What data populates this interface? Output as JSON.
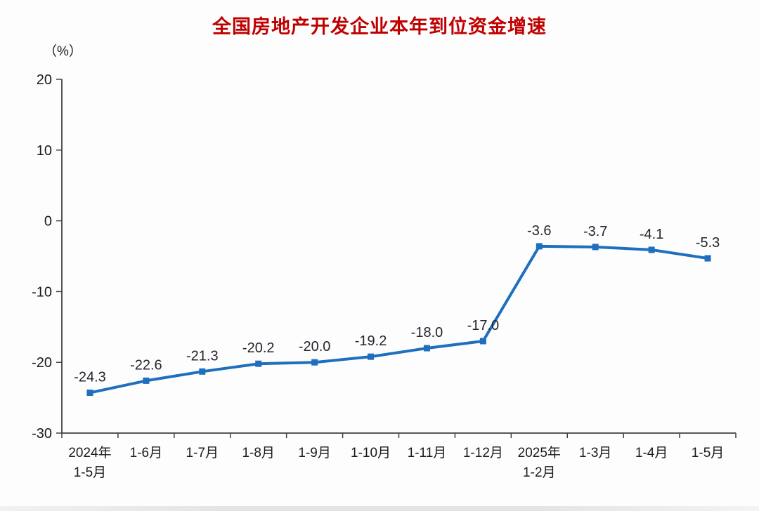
{
  "title": "全国房地产开发企业本年到位资金增速",
  "unit_label": "（%）",
  "chart_data": {
    "type": "line",
    "title": "全国房地产开发企业本年到位资金增速",
    "ylabel": "（%）",
    "categories": [
      "2024年\n1-5月",
      "1-6月",
      "1-7月",
      "1-8月",
      "1-9月",
      "1-10月",
      "1-11月",
      "1-12月",
      "2025年\n1-2月",
      "1-3月",
      "1-4月",
      "1-5月"
    ],
    "values": [
      -24.3,
      -22.6,
      -21.3,
      -20.2,
      -20.0,
      -19.2,
      -18.0,
      -17.0,
      -3.6,
      -3.7,
      -4.1,
      -5.3
    ],
    "labels": [
      "-24.3",
      "-22.6",
      "-21.3",
      "-20.2",
      "-20.0",
      "-19.2",
      "-18.0",
      "-17.0",
      "-3.6",
      "-3.7",
      "-4.1",
      "-5.3"
    ],
    "ylim": [
      -30,
      20
    ],
    "ytick_interval": 10,
    "ytick_labels": [
      "20",
      "10",
      "0",
      "-10",
      "-20",
      "-30"
    ],
    "grid": false,
    "legend": "none",
    "line_color": "#1e6fbe",
    "marker": "square",
    "label_color": "#24242e",
    "axis_color": "#404040",
    "title_color": "#c00000"
  }
}
